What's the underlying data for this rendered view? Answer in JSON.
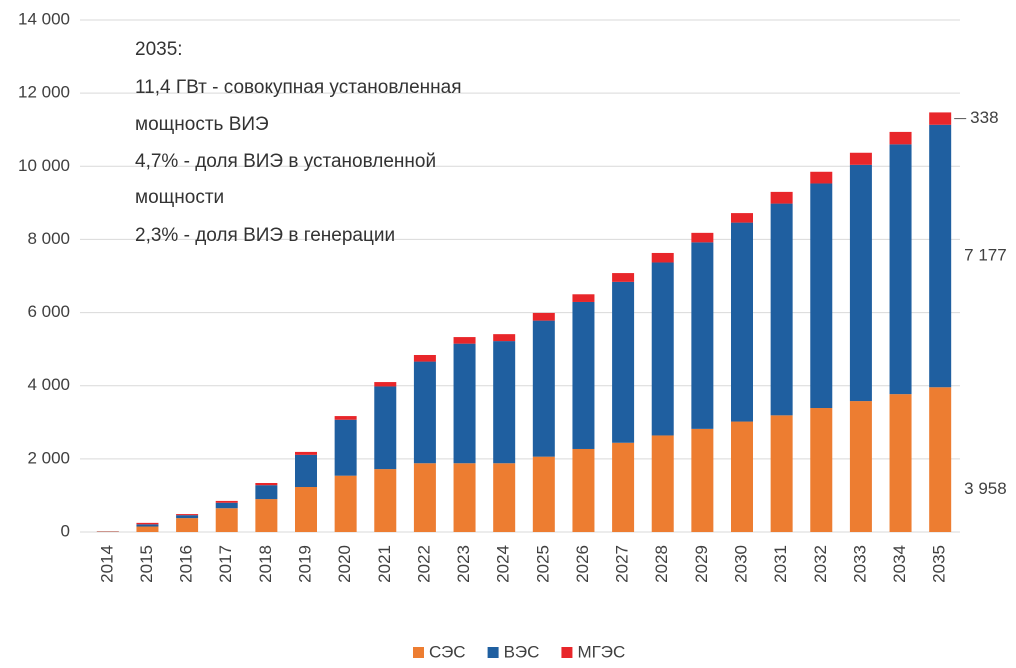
{
  "chart_data": {
    "type": "bar",
    "stacked": true,
    "annotations": [
      "2035:",
      "11,4 ГВт - совокупная установленная",
      "мощность ВИЭ",
      "4,7% - доля ВИЭ в установленной",
      "мощности",
      "2,3% - доля ВИЭ в генерации"
    ],
    "categories": [
      "2014",
      "2015",
      "2016",
      "2017",
      "2018",
      "2019",
      "2020",
      "2021",
      "2022",
      "2023",
      "2024",
      "2025",
      "2026",
      "2027",
      "2028",
      "2029",
      "2030",
      "2031",
      "2032",
      "2033",
      "2034",
      "2035"
    ],
    "series": [
      {
        "name": "СЭС",
        "color": "#ed7d31",
        "values": [
          10,
          150,
          380,
          650,
          900,
          1230,
          1540,
          1720,
          1880,
          1880,
          1880,
          2060,
          2270,
          2440,
          2640,
          2820,
          3020,
          3190,
          3390,
          3580,
          3770,
          3958
        ],
        "value_labels": [
          null,
          null,
          null,
          null,
          null,
          null,
          null,
          null,
          null,
          null,
          null,
          null,
          null,
          null,
          null,
          null,
          null,
          null,
          null,
          null,
          null,
          "3 958"
        ]
      },
      {
        "name": "ВЭС",
        "color": "#1f5fa0",
        "values": [
          5,
          60,
          80,
          150,
          380,
          880,
          1530,
          2260,
          2780,
          3270,
          3340,
          3720,
          4020,
          4400,
          4730,
          5100,
          5440,
          5790,
          6140,
          6460,
          6830,
          7177
        ],
        "value_labels": [
          null,
          null,
          null,
          null,
          null,
          null,
          null,
          null,
          null,
          null,
          null,
          null,
          null,
          null,
          null,
          null,
          null,
          null,
          null,
          null,
          null,
          "7 177"
        ]
      },
      {
        "name": "МГЭС",
        "color": "#e8262a",
        "values": [
          5,
          40,
          30,
          50,
          60,
          80,
          100,
          120,
          180,
          180,
          190,
          210,
          210,
          240,
          260,
          260,
          260,
          320,
          320,
          330,
          340,
          338
        ],
        "value_labels": [
          null,
          null,
          null,
          null,
          null,
          null,
          null,
          null,
          null,
          null,
          null,
          null,
          null,
          null,
          null,
          null,
          null,
          null,
          null,
          null,
          null,
          "338"
        ]
      }
    ],
    "ylim": [
      0,
      14000
    ],
    "yticks": [
      0,
      {
        "value": 2000,
        "label": "2 000"
      },
      {
        "value": 4000,
        "label": "4 000"
      },
      {
        "value": 6000,
        "label": "6 000"
      },
      {
        "value": 8000,
        "label": "8 000"
      },
      {
        "value": 10000,
        "label": "10 000"
      },
      {
        "value": 12000,
        "label": "12 000"
      },
      {
        "value": 14000,
        "label": "14 000"
      }
    ],
    "grid": true,
    "legend": "bottom"
  }
}
